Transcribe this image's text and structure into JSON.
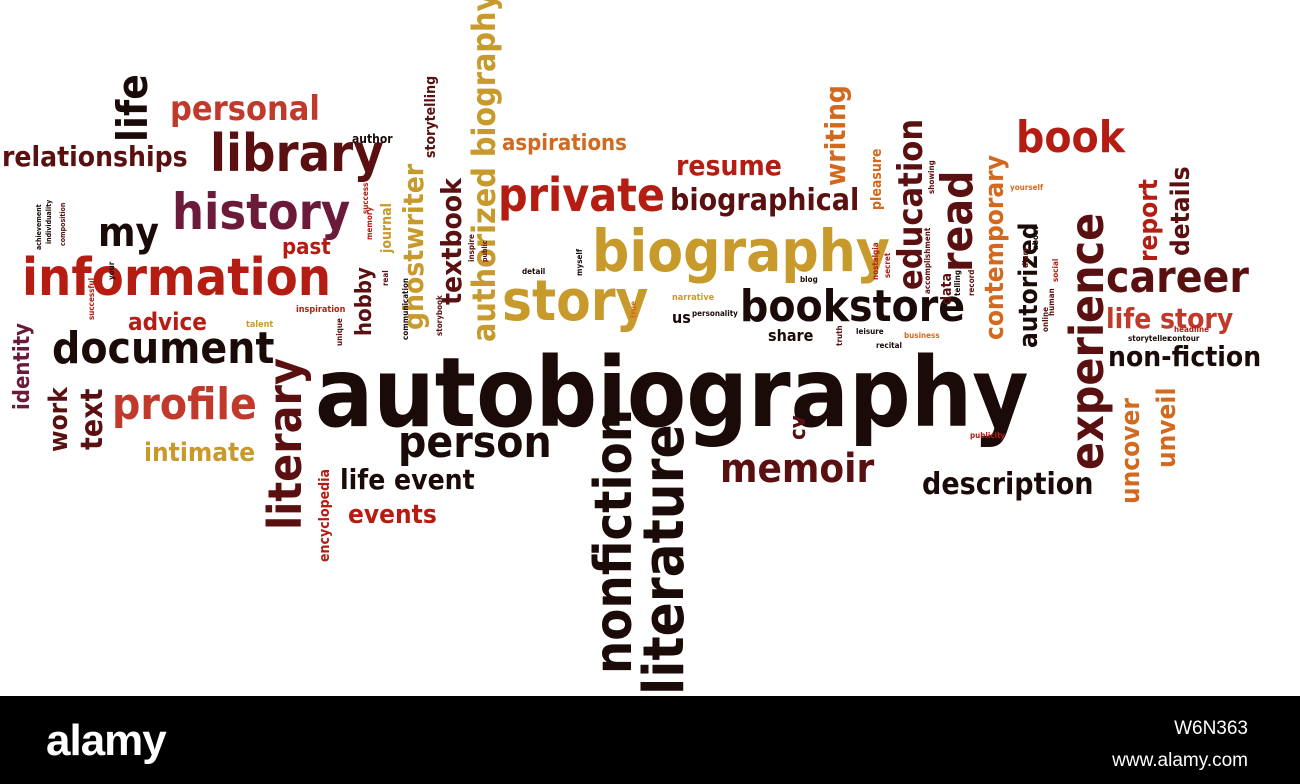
{
  "colors": {
    "dark": "#1a0a08",
    "maroon": "#5a1010",
    "wine": "#6b1a3a",
    "red": "#b51c12",
    "rust": "#c0392b",
    "orange": "#d2691e",
    "gold": "#c89a2c"
  },
  "words": [
    {
      "text": "autobiography",
      "color": "dark"
    },
    {
      "text": "biography",
      "color": "gold"
    },
    {
      "text": "story",
      "color": "gold"
    },
    {
      "text": "information",
      "color": "red"
    },
    {
      "text": "bookstore",
      "color": "dark"
    },
    {
      "text": "history",
      "color": "wine"
    },
    {
      "text": "library",
      "color": "maroon"
    },
    {
      "text": "private",
      "color": "red"
    },
    {
      "text": "document",
      "color": "dark"
    },
    {
      "text": "profile",
      "color": "rust"
    },
    {
      "text": "career",
      "color": "maroon"
    },
    {
      "text": "person",
      "color": "dark"
    },
    {
      "text": "memoir",
      "color": "maroon"
    },
    {
      "text": "personal",
      "color": "rust"
    },
    {
      "text": "relationships",
      "color": "maroon"
    },
    {
      "text": "book",
      "color": "red"
    },
    {
      "text": "resume",
      "color": "red"
    },
    {
      "text": "biographical",
      "color": "maroon"
    },
    {
      "text": "aspirations",
      "color": "orange"
    },
    {
      "text": "my",
      "color": "dark"
    },
    {
      "text": "past",
      "color": "red"
    },
    {
      "text": "advice",
      "color": "red"
    },
    {
      "text": "intimate",
      "color": "gold"
    },
    {
      "text": "life event",
      "color": "dark"
    },
    {
      "text": "events",
      "color": "red"
    },
    {
      "text": "description",
      "color": "dark"
    },
    {
      "text": "non-fiction",
      "color": "dark"
    },
    {
      "text": "life story",
      "color": "rust"
    },
    {
      "text": "share",
      "color": "dark"
    },
    {
      "text": "us",
      "color": "dark"
    },
    {
      "text": "author",
      "color": "dark"
    },
    {
      "text": "life",
      "color": "dark"
    },
    {
      "text": "literary",
      "color": "maroon"
    },
    {
      "text": "literature",
      "color": "dark"
    },
    {
      "text": "nonfiction",
      "color": "dark"
    },
    {
      "text": "authorized biography",
      "color": "gold"
    },
    {
      "text": "storytelling",
      "color": "maroon"
    },
    {
      "text": "textbook",
      "color": "maroon"
    },
    {
      "text": "ghostwriter",
      "color": "gold"
    },
    {
      "text": "hobby",
      "color": "maroon"
    },
    {
      "text": "experience",
      "color": "maroon"
    },
    {
      "text": "read",
      "color": "maroon"
    },
    {
      "text": "education",
      "color": "maroon"
    },
    {
      "text": "contemporary",
      "color": "orange"
    },
    {
      "text": "autorized",
      "color": "dark"
    },
    {
      "text": "writing",
      "color": "orange"
    },
    {
      "text": "report",
      "color": "red"
    },
    {
      "text": "details",
      "color": "maroon"
    },
    {
      "text": "uncover",
      "color": "orange"
    },
    {
      "text": "unveil",
      "color": "orange"
    },
    {
      "text": "cv",
      "color": "maroon"
    },
    {
      "text": "work",
      "color": "maroon"
    },
    {
      "text": "text",
      "color": "maroon"
    },
    {
      "text": "identity",
      "color": "wine"
    },
    {
      "text": "encyclopedia",
      "color": "red"
    },
    {
      "text": "pleasure",
      "color": "orange"
    },
    {
      "text": "data",
      "color": "maroon"
    },
    {
      "text": "journal",
      "color": "gold"
    },
    {
      "text": "inspiration",
      "color": "red"
    },
    {
      "text": "talent",
      "color": "gold"
    },
    {
      "text": "successful",
      "color": "red"
    },
    {
      "text": "unique",
      "color": "maroon"
    },
    {
      "text": "real",
      "color": "maroon"
    },
    {
      "text": "communication",
      "color": "dark"
    },
    {
      "text": "storybook",
      "color": "maroon"
    },
    {
      "text": "inspire",
      "color": "maroon"
    },
    {
      "text": "public",
      "color": "maroon"
    },
    {
      "text": "detail",
      "color": "dark"
    },
    {
      "text": "myself",
      "color": "dark"
    },
    {
      "text": "true",
      "color": "orange"
    },
    {
      "text": "narrative",
      "color": "gold"
    },
    {
      "text": "personality",
      "color": "dark"
    },
    {
      "text": "blog",
      "color": "dark"
    },
    {
      "text": "nostalgia",
      "color": "red"
    },
    {
      "text": "secret",
      "color": "red"
    },
    {
      "text": "truth",
      "color": "maroon"
    },
    {
      "text": "leisure",
      "color": "dark"
    },
    {
      "text": "recital",
      "color": "dark"
    },
    {
      "text": "business",
      "color": "orange"
    },
    {
      "text": "accomplishment",
      "color": "maroon"
    },
    {
      "text": "showing",
      "color": "maroon"
    },
    {
      "text": "telling",
      "color": "dark"
    },
    {
      "text": "record",
      "color": "maroon"
    },
    {
      "text": "yourself",
      "color": "orange"
    },
    {
      "text": "about",
      "color": "dark"
    },
    {
      "text": "diary",
      "color": "maroon"
    },
    {
      "text": "online",
      "color": "maroon"
    },
    {
      "text": "human",
      "color": "maroon"
    },
    {
      "text": "social",
      "color": "red"
    },
    {
      "text": "headline",
      "color": "red"
    },
    {
      "text": "storyteller",
      "color": "dark"
    },
    {
      "text": "contour",
      "color": "dark"
    },
    {
      "text": "publicity",
      "color": "red"
    },
    {
      "text": "success",
      "color": "red"
    },
    {
      "text": "memory",
      "color": "red"
    },
    {
      "text": "achievement",
      "color": "dark"
    },
    {
      "text": "individuality",
      "color": "dark"
    },
    {
      "text": "composition",
      "color": "maroon"
    },
    {
      "text": "your",
      "color": "dark"
    }
  ],
  "footer": {
    "logo": "alamy",
    "image_id": "W6N363",
    "url": "www.alamy.com"
  }
}
